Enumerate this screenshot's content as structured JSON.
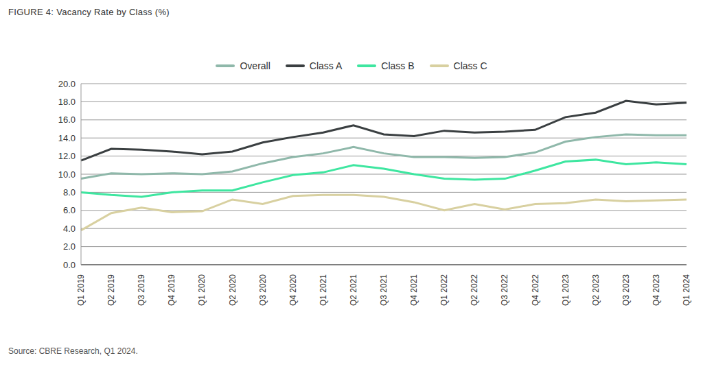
{
  "chart_data": {
    "type": "line",
    "title": "FIGURE 4: Vacancy Rate by Class (%)",
    "source": "Source: CBRE Research, Q1 2024.",
    "categories": [
      "Q1 2019",
      "Q2 2019",
      "Q3 2019",
      "Q4 2019",
      "Q1 2020",
      "Q2 2020",
      "Q3 2020",
      "Q4 2020",
      "Q1 2021",
      "Q2 2021",
      "Q3 2021",
      "Q4 2021",
      "Q1 2022",
      "Q2 2022",
      "Q3 2022",
      "Q4 2022",
      "Q1 2023",
      "Q2 2023",
      "Q3 2023",
      "Q4 2023",
      "Q1 2024"
    ],
    "series": [
      {
        "name": "Overall",
        "color": "#8fb8aa",
        "values": [
          9.5,
          10.1,
          10.0,
          10.1,
          10.0,
          10.3,
          11.2,
          11.9,
          12.3,
          13.0,
          12.3,
          11.9,
          11.9,
          11.8,
          11.9,
          12.4,
          13.6,
          14.1,
          14.4,
          14.3,
          14.3
        ]
      },
      {
        "name": "Class A",
        "color": "#3a3f41",
        "values": [
          11.5,
          12.8,
          12.7,
          12.5,
          12.2,
          12.5,
          13.5,
          14.1,
          14.6,
          15.4,
          14.4,
          14.2,
          14.8,
          14.6,
          14.7,
          14.9,
          16.3,
          16.8,
          18.1,
          17.7,
          17.9
        ]
      },
      {
        "name": "Class B",
        "color": "#3ee6a0",
        "values": [
          8.0,
          7.7,
          7.5,
          8.0,
          8.2,
          8.2,
          9.1,
          9.9,
          10.2,
          11.0,
          10.6,
          10.0,
          9.5,
          9.4,
          9.5,
          10.4,
          11.4,
          11.6,
          11.1,
          11.3,
          11.1
        ]
      },
      {
        "name": "Class C",
        "color": "#d8d0a0",
        "values": [
          3.8,
          5.7,
          6.3,
          5.8,
          5.9,
          7.2,
          6.7,
          7.6,
          7.7,
          7.7,
          7.5,
          6.9,
          6.0,
          6.7,
          6.1,
          6.7,
          6.8,
          7.2,
          7.0,
          7.1,
          7.2
        ]
      }
    ],
    "ylim": [
      0,
      20
    ],
    "yticks": [
      {
        "value": 0,
        "label": "0.0"
      },
      {
        "value": 2,
        "label": "2.0"
      },
      {
        "value": 4,
        "label": "4.0"
      },
      {
        "value": 6,
        "label": "6.0"
      },
      {
        "value": 8,
        "label": "8.0"
      },
      {
        "value": 10,
        "label": "10.0"
      },
      {
        "value": 12,
        "label": "12.0"
      },
      {
        "value": 14,
        "label": "14.0"
      },
      {
        "value": 16,
        "label": "16.0"
      },
      {
        "value": 18,
        "label": "18.0"
      },
      {
        "value": 20,
        "label": "20.0"
      }
    ],
    "grid": true,
    "legend": "top"
  }
}
